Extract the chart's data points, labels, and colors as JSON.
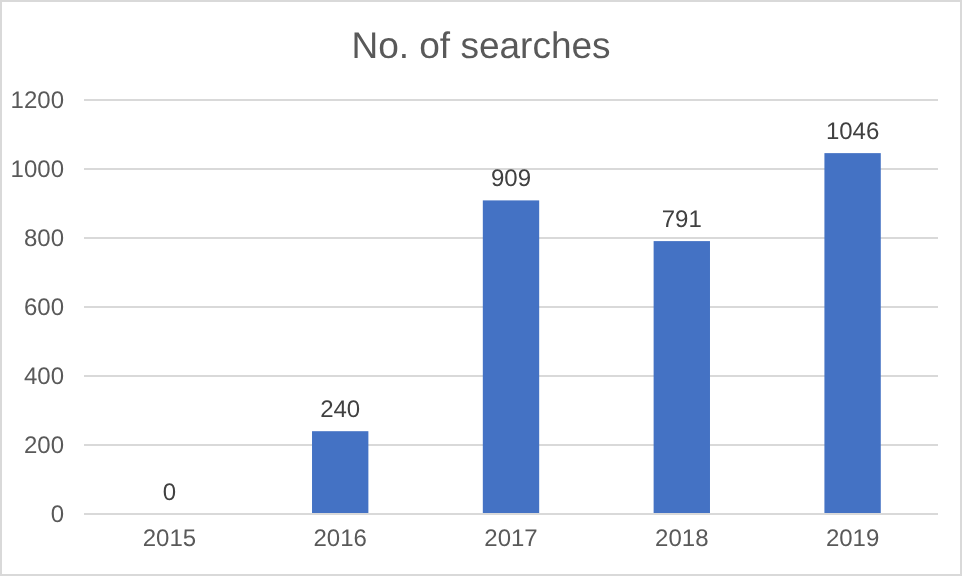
{
  "chart_data": {
    "type": "bar",
    "title": "No. of searches",
    "categories": [
      "2015",
      "2016",
      "2017",
      "2018",
      "2019"
    ],
    "values": [
      0,
      240,
      909,
      791,
      1046
    ],
    "color": "#4472c4",
    "ylim": [
      0,
      1200
    ],
    "yticks": [
      0,
      200,
      400,
      600,
      800,
      1000,
      1200
    ],
    "grid": "y",
    "data_labels": true
  }
}
